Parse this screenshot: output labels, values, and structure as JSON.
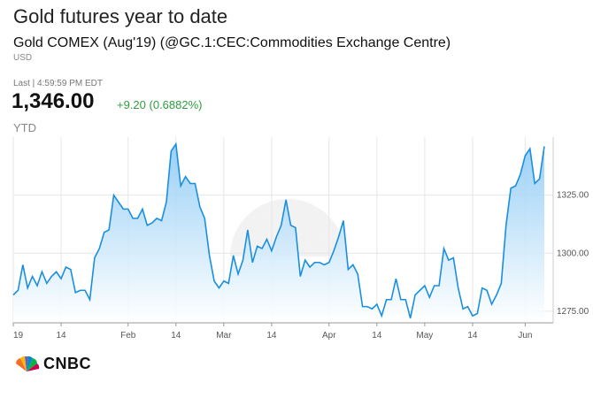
{
  "header": {
    "title": "Gold futures year to date",
    "subtitle": "Gold COMEX (Aug'19) (@GC.1:CEC:Commodities Exchange Centre)",
    "currency": "USD",
    "last_label": "Last | 4:59:59 PM EDT",
    "price": "1,346.00",
    "change": "+9.20 (0.6882%)",
    "period": "YTD"
  },
  "colors": {
    "line": "#1a8fe0",
    "fill_top": "#8ecbf5",
    "fill_bottom": "#ffffff",
    "change_positive": "#2e9e3e",
    "grid": "#e6e6e6"
  },
  "brand": {
    "name": "CNBC"
  },
  "chart_data": {
    "type": "area",
    "title": "Gold futures year to date",
    "xlabel": "",
    "ylabel": "",
    "ylim": [
      1270,
      1350
    ],
    "yticks": [
      "1275.00",
      "1300.00",
      "1325.00"
    ],
    "ytick_values": [
      1275,
      1300,
      1325
    ],
    "xticks": [
      "19",
      "14",
      "Feb",
      "14",
      "Mar",
      "14",
      "Apr",
      "14",
      "May",
      "14",
      "Jun"
    ],
    "xtick_indices": [
      0,
      10,
      24,
      34,
      44,
      54,
      66,
      76,
      86,
      96,
      107
    ],
    "grid": true,
    "series": [
      {
        "values": [
          1282,
          1284,
          1295,
          1285,
          1290,
          1286,
          1292,
          1287,
          1290,
          1292,
          1289,
          1294,
          1293,
          1283,
          1284,
          1284,
          1280,
          1298,
          1302,
          1309,
          1310,
          1325,
          1322,
          1319,
          1319,
          1315,
          1315,
          1319,
          1312,
          1313,
          1315,
          1314,
          1322,
          1344,
          1347,
          1329,
          1333,
          1330,
          1330,
          1320,
          1315,
          1299,
          1288,
          1285,
          1288,
          1287,
          1299,
          1291,
          1297,
          1310,
          1296,
          1303,
          1302,
          1306,
          1301,
          1307,
          1312,
          1323,
          1312,
          1311,
          1290,
          1297,
          1294,
          1296,
          1296,
          1295,
          1296,
          1301,
          1307,
          1314,
          1293,
          1295,
          1291,
          1277,
          1277,
          1276,
          1278,
          1273,
          1280,
          1280,
          1289,
          1280,
          1280,
          1272,
          1282,
          1284,
          1286,
          1281,
          1286,
          1286,
          1302,
          1297,
          1298,
          1285,
          1276,
          1277,
          1273,
          1274,
          1285,
          1284,
          1278,
          1282,
          1287,
          1312,
          1328,
          1329,
          1334,
          1342,
          1345,
          1330,
          1332,
          1346
        ]
      }
    ]
  }
}
